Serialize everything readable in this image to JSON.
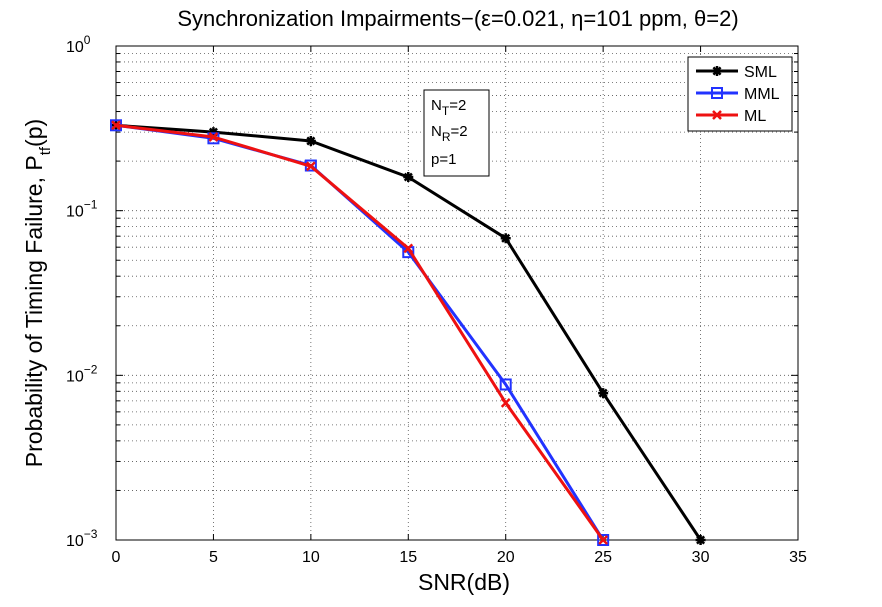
{
  "chart_data": {
    "type": "line",
    "title": "Synchronization Impairments−(ε=0.021, η=101 ppm, θ=2)",
    "xlabel": "SNR(dB)",
    "ylabel": {
      "main": "Probability of Timing Failure, P",
      "sub": "tf",
      "tail": "(p)"
    },
    "xlim": [
      0,
      35
    ],
    "ylim": [
      0.001,
      1
    ],
    "yscale": "log",
    "grid": true,
    "xticks": [
      "0",
      "5",
      "10",
      "15",
      "20",
      "25",
      "30",
      "35"
    ],
    "xtick_values": [
      0,
      5,
      10,
      15,
      20,
      25,
      30,
      35
    ],
    "yticks": [
      {
        "value": 1,
        "base": "10",
        "exp": "0"
      },
      {
        "value": 0.1,
        "base": "10",
        "exp": "−1"
      },
      {
        "value": 0.01,
        "base": "10",
        "exp": "−2"
      },
      {
        "value": 0.001,
        "base": "10",
        "exp": "−3"
      }
    ],
    "legend_position": "top-right",
    "series": [
      {
        "name": "SML",
        "color": "#000000",
        "marker": "asterisk",
        "x": [
          0,
          5,
          10,
          15,
          20,
          25,
          30
        ],
        "y": [
          0.33,
          0.3,
          0.265,
          0.16,
          0.068,
          0.0078,
          0.001
        ]
      },
      {
        "name": "MML",
        "color": "#2233ff",
        "marker": "square",
        "x": [
          0,
          5,
          10,
          15,
          20,
          25
        ],
        "y": [
          0.33,
          0.275,
          0.188,
          0.056,
          0.0088,
          0.001
        ]
      },
      {
        "name": "ML",
        "color": "#ee1111",
        "marker": "x",
        "x": [
          0,
          5,
          10,
          15,
          20,
          25
        ],
        "y": [
          0.33,
          0.28,
          0.186,
          0.059,
          0.0068,
          0.001
        ]
      }
    ],
    "annotation": [
      {
        "base": "N",
        "sub": "T",
        "tail": "=2"
      },
      {
        "base": "N",
        "sub": "R",
        "tail": "=2"
      },
      {
        "base": "p=1",
        "sub": "",
        "tail": ""
      }
    ]
  }
}
